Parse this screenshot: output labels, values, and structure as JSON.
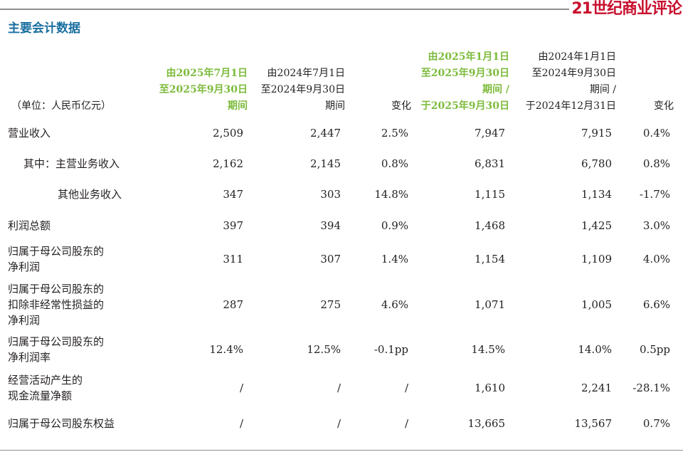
{
  "brand": {
    "logo_text": "21世纪商业评论"
  },
  "title": "主要会计数据",
  "header": {
    "unit": "（单位：人民币亿元）",
    "col1": [
      "由2025年7月1日",
      "至2025年9月30日",
      "期间"
    ],
    "col2": [
      "由2024年7月1日",
      "至2024年9月30日",
      "期间"
    ],
    "col3": [
      "变化"
    ],
    "col4": [
      "由2025年1月1日",
      "至2025年9月30日",
      "期间 /",
      "于2025年9月30日"
    ],
    "col5": [
      "由2024年1月1日",
      "至2024年9月30日",
      "期间 /",
      "于2024年12月31日"
    ],
    "col6": [
      "变化"
    ]
  },
  "rows": [
    {
      "label": [
        "营业收入"
      ],
      "values": [
        "2,509",
        "2,447",
        "2.5%",
        "7,947",
        "7,915",
        "0.4%"
      ]
    },
    {
      "label": [
        "其中：主营业务收入"
      ],
      "values": [
        "2,162",
        "2,145",
        "0.8%",
        "6,831",
        "6,780",
        "0.8%"
      ]
    },
    {
      "label": [
        "其他业务收入"
      ],
      "values": [
        "347",
        "303",
        "14.8%",
        "1,115",
        "1,134",
        "-1.7%"
      ]
    },
    {
      "label": [
        "利润总额"
      ],
      "values": [
        "397",
        "394",
        "0.9%",
        "1,468",
        "1,425",
        "3.0%"
      ]
    },
    {
      "label": [
        "归属于母公司股东的",
        "净利润"
      ],
      "values": [
        "311",
        "307",
        "1.4%",
        "1,154",
        "1,109",
        "4.0%"
      ]
    },
    {
      "label": [
        "归属于母公司股东的",
        "扣除非经常性损益的",
        "净利润"
      ],
      "values": [
        "287",
        "275",
        "4.6%",
        "1,071",
        "1,005",
        "6.6%"
      ]
    },
    {
      "label": [
        "归属于母公司股东的",
        "净利润率"
      ],
      "values": [
        "12.4%",
        "12.5%",
        "-0.1pp",
        "14.5%",
        "14.0%",
        "0.5pp"
      ]
    },
    {
      "label": [
        "经营活动产生的",
        "现金流量净额"
      ],
      "values": [
        "/",
        "/",
        "/",
        "1,610",
        "2,241",
        "-28.1%"
      ]
    },
    {
      "label": [
        "归属于母公司股东权益"
      ],
      "values": [
        "/",
        "/",
        "/",
        "13,665",
        "13,567",
        "0.7%"
      ]
    }
  ]
}
